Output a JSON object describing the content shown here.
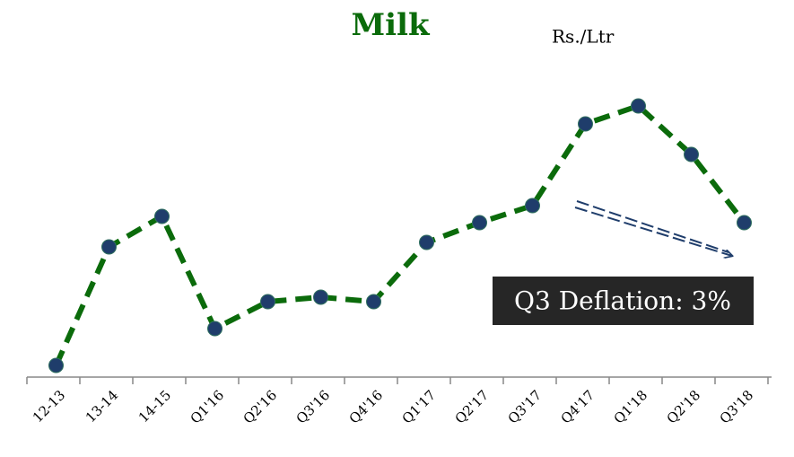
{
  "chart_data": {
    "type": "line",
    "title": "Milk",
    "unit_label": "Rs./Ltr",
    "categories": [
      "12-13",
      "13-14",
      "14-15",
      "Q1'16",
      "Q2'16",
      "Q3'16",
      "Q4'16",
      "Q1'17",
      "Q2'17",
      "Q3'17",
      "Q4'17",
      "Q1'18",
      "Q2'18",
      "Q3'18"
    ],
    "series": [
      {
        "name": "Milk",
        "color": "#0b6b0b",
        "marker_color": "#1f3d6b",
        "values": [
          13,
          145,
          179,
          54,
          84,
          89,
          84,
          150,
          172,
          191,
          282,
          302,
          248,
          172
        ]
      }
    ],
    "ylim": [
      0,
      320
    ],
    "annotation": "Q3 Deflation: 3%"
  }
}
